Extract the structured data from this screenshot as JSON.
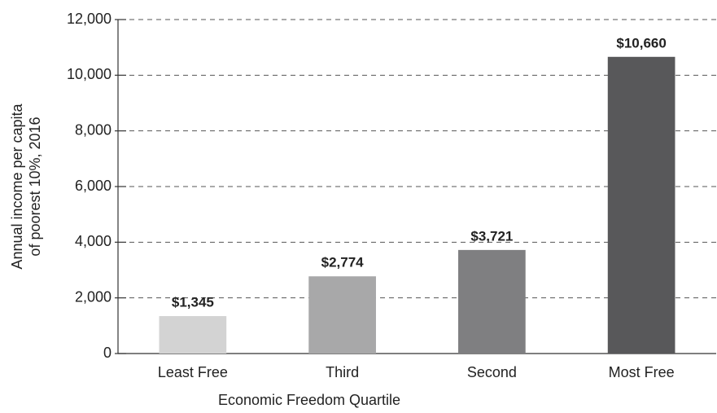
{
  "chart_data": {
    "type": "bar",
    "categories": [
      "Least Free",
      "Third",
      "Second",
      "Most Free"
    ],
    "values": [
      1345,
      2774,
      3721,
      10660
    ],
    "value_labels": [
      "$1,345",
      "$2,774",
      "$3,721",
      "$10,660"
    ],
    "colors": [
      "#d3d3d3",
      "#a8a8a9",
      "#7f7f81",
      "#58585a"
    ],
    "ylim": [
      0,
      12000
    ],
    "yticks": [
      0,
      {
        "value": 2000,
        "label": "2,000"
      },
      {
        "value": 4000,
        "label": "4,000"
      },
      {
        "value": 6000,
        "label": "6,000"
      },
      {
        "value": 8000,
        "label": "8,000"
      },
      {
        "value": 10000,
        "label": "10,000"
      },
      {
        "value": 12000,
        "label": "12,000"
      }
    ],
    "y_label": [
      "Annual income per capita",
      "of poorest 10%, 2016"
    ],
    "x_label": "Economic Freedom Quartile",
    "grid": true
  }
}
